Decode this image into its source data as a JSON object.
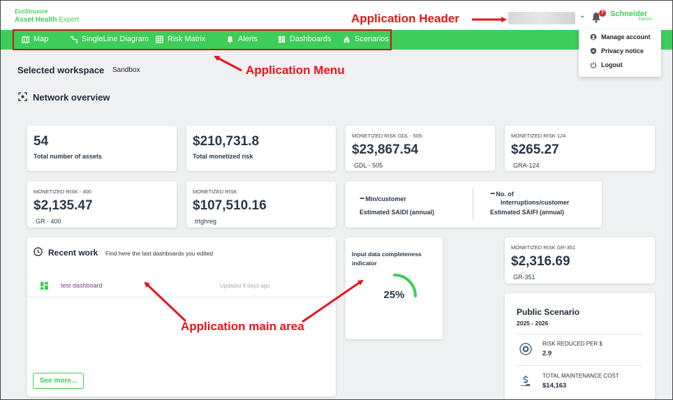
{
  "header": {
    "brand_top": "EcoStruxure",
    "app_name_bold": "Asset Health",
    "app_name_rest": " Expert",
    "notification_count": "7",
    "schneider_name": "Schneider",
    "schneider_sub": "Electric"
  },
  "nav": {
    "items": [
      {
        "label": "Map",
        "icon": "map-icon"
      },
      {
        "label": "SingleLine Diagram",
        "icon": "single-line-icon"
      },
      {
        "label": "Risk Matrix",
        "icon": "grid-icon"
      },
      {
        "label": "Alerts",
        "icon": "bell-icon"
      },
      {
        "label": "Dashboards",
        "icon": "dashboard-icon"
      },
      {
        "label": "Scenarios",
        "icon": "scenario-icon"
      }
    ]
  },
  "user_menu": {
    "items": [
      {
        "label": "Manage account",
        "icon": "user-icon"
      },
      {
        "label": "Privacy notice",
        "icon": "shield-icon"
      },
      {
        "label": "Logout",
        "icon": "power-icon"
      }
    ]
  },
  "workspace": {
    "label": "Selected workspace",
    "value": "Sandbox",
    "section_title": "Network overview"
  },
  "kpis": {
    "total_assets": {
      "value": "54",
      "label": "Total number of assets"
    },
    "total_risk": {
      "value": "$210,731.8",
      "label": "Total monetized risk"
    },
    "risk_gdl": {
      "caption": "MONETIZED RISK GDL - 505",
      "value": "$23,867.54",
      "sub": "GDL - 505"
    },
    "risk_124": {
      "caption": "MONETIZED RISK 124",
      "value": "$265.27",
      "sub": "GRA-124"
    },
    "risk_400": {
      "caption": "MONETIZED RISK - 400",
      "value": "$2,135.47",
      "sub": "GR - 400"
    },
    "risk_generic": {
      "caption": "MONETIZED RISK",
      "value": "$107,510.16",
      "sub": "trtghreg"
    },
    "saidi": {
      "dash": "--",
      "unit": "Min/customer",
      "label": "Estimated SAIDI (annual)"
    },
    "saifi": {
      "dash": "--",
      "unit_line1": "No. of",
      "unit_line2": "interruptions/customer",
      "label": "Estimated SAIFI (annual)"
    },
    "risk_351": {
      "caption": "MONETIZED RISK GR-351",
      "value": "$2,316.69",
      "sub": "GR-351"
    }
  },
  "recent_work": {
    "title": "Recent work",
    "hint": "Find here the last dashboards you edited",
    "items": [
      {
        "name": "test dashboard",
        "updated": "Updated 8 days ago"
      }
    ],
    "see_more": "See more..."
  },
  "completeness": {
    "title_line1": "Input data completeness",
    "title_line2": "indicator",
    "value": "25%",
    "fraction": 0.25
  },
  "scenario": {
    "title": "Public Scenario",
    "range": "2025 - 2026",
    "metrics": [
      {
        "label": "RISK REDUCED PER $",
        "value": "2.9"
      },
      {
        "label": "TOTAL MAINTENANCE COST",
        "value": "$14,163"
      }
    ]
  },
  "annotations": {
    "header": "Application Header",
    "menu": "Application Menu",
    "main": "Application main area"
  },
  "colors": {
    "brand_green": "#3dcd58",
    "annotation_red": "#e8131a"
  }
}
